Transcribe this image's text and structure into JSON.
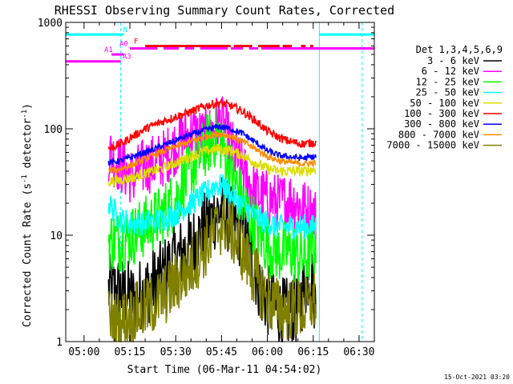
{
  "chart_data": {
    "type": "line",
    "title": "RHESSI Observing Summary Count Rates, Corrected",
    "xlabel": "Start Time (06-Mar-11 04:54:02)",
    "ylabel_main": "Corrected Count Rate (s",
    "ylabel_sup1": "-1",
    "ylabel_mid": " detector",
    "ylabel_sup2": "-1",
    "ylabel_end": ")",
    "yscale": "log",
    "ylim": [
      1,
      1000
    ],
    "xlim_min": [
      -6,
      95
    ],
    "x_ticks": [
      {
        "m": 0,
        "label": "05:00"
      },
      {
        "m": 15,
        "label": "05:15"
      },
      {
        "m": 30,
        "label": "05:30"
      },
      {
        "m": 45,
        "label": "05:45"
      },
      {
        "m": 60,
        "label": "06:00"
      },
      {
        "m": 75,
        "label": "06:15"
      },
      {
        "m": 90,
        "label": "06:30"
      }
    ],
    "y_ticks": [
      {
        "v": 1,
        "label": "1"
      },
      {
        "v": 10,
        "label": "10"
      },
      {
        "v": 100,
        "label": "100"
      },
      {
        "v": 1000,
        "label": "1000"
      }
    ],
    "legend_title": "Det 1,3,4,5,6,9",
    "series": [
      {
        "name": "3 - 6 keV",
        "color": "#000000",
        "noise": 0.35,
        "x": [
          8,
          12,
          16,
          20,
          25,
          30,
          35,
          40,
          43,
          45,
          48,
          52,
          55,
          58,
          62,
          66,
          70,
          74,
          76
        ],
        "y": [
          3,
          3,
          2.5,
          3,
          4,
          6,
          8,
          12,
          16,
          17,
          14,
          10,
          6,
          3,
          2,
          1.8,
          2,
          5,
          2
        ]
      },
      {
        "name": "6 - 12 keV",
        "color": "#ff00ff",
        "noise": 0.28,
        "x": [
          8,
          12,
          16,
          20,
          25,
          28,
          32,
          36,
          40,
          44,
          46,
          48,
          52,
          56,
          60,
          64,
          68,
          72,
          76
        ],
        "y": [
          60,
          45,
          35,
          45,
          50,
          60,
          80,
          90,
          80,
          120,
          100,
          70,
          40,
          25,
          22,
          20,
          22,
          18,
          15
        ]
      },
      {
        "name": "12 - 25 keV",
        "color": "#00ff00",
        "noise": 0.3,
        "x": [
          8,
          12,
          16,
          20,
          25,
          30,
          35,
          40,
          44,
          46,
          48,
          52,
          56,
          60,
          64,
          68,
          72,
          76
        ],
        "y": [
          9,
          9,
          10,
          12,
          15,
          22,
          40,
          70,
          90,
          60,
          40,
          20,
          12,
          8,
          7,
          7,
          6,
          8
        ]
      },
      {
        "name": "25 - 50 keV",
        "color": "#00ffff",
        "noise": 0.12,
        "x": [
          8,
          12,
          16,
          20,
          25,
          30,
          35,
          40,
          43,
          46,
          48,
          52,
          56,
          60,
          64,
          68,
          72,
          76
        ],
        "y": [
          20,
          14,
          13,
          13,
          14,
          16,
          20,
          25,
          30,
          28,
          24,
          19,
          15,
          13,
          12,
          12,
          12,
          12
        ]
      },
      {
        "name": "50 - 100 keV",
        "color": "#dddd00",
        "noise": 0.05,
        "x": [
          8,
          12,
          16,
          20,
          25,
          30,
          35,
          40,
          44,
          48,
          52,
          56,
          60,
          64,
          68,
          72,
          76
        ],
        "y": [
          32,
          33,
          35,
          38,
          42,
          48,
          55,
          62,
          65,
          62,
          56,
          48,
          42,
          40,
          40,
          40,
          42
        ]
      },
      {
        "name": "100 - 300 keV",
        "color": "#ff0000",
        "noise": 0.04,
        "x": [
          8,
          12,
          16,
          20,
          25,
          30,
          35,
          40,
          44,
          48,
          52,
          56,
          60,
          64,
          68,
          72,
          76
        ],
        "y": [
          65,
          72,
          85,
          100,
          115,
          130,
          145,
          165,
          175,
          165,
          145,
          120,
          95,
          82,
          75,
          72,
          75
        ]
      },
      {
        "name": "300 - 800 keV",
        "color": "#0000ff",
        "noise": 0.03,
        "x": [
          8,
          12,
          16,
          20,
          25,
          30,
          35,
          40,
          44,
          48,
          52,
          56,
          60,
          64,
          68,
          72,
          76
        ],
        "y": [
          48,
          50,
          55,
          60,
          68,
          78,
          88,
          98,
          105,
          100,
          90,
          75,
          62,
          56,
          54,
          53,
          55
        ]
      },
      {
        "name": "800 - 7000 keV",
        "color": "#ff8c00",
        "noise": 0.03,
        "x": [
          8,
          12,
          16,
          20,
          25,
          30,
          35,
          40,
          44,
          48,
          52,
          56,
          60,
          64,
          68,
          72,
          76
        ],
        "y": [
          40,
          42,
          46,
          52,
          60,
          68,
          76,
          85,
          90,
          85,
          76,
          65,
          55,
          50,
          48,
          47,
          48
        ]
      },
      {
        "name": "7000 - 15000 keV",
        "color": "#808000",
        "noise": 0.3,
        "x": [
          8,
          12,
          16,
          20,
          25,
          30,
          35,
          40,
          44,
          46,
          48,
          52,
          56,
          60,
          64,
          68,
          72,
          76
        ],
        "y": [
          1.6,
          1.5,
          1.8,
          2,
          2.5,
          3.5,
          5,
          8,
          12,
          13,
          11,
          7,
          4,
          2.5,
          2,
          2,
          2,
          2.5
        ]
      }
    ],
    "state_bars": [
      {
        "label": "N",
        "color": "#00ffff",
        "y_level": 770,
        "label_at": 13.5,
        "segments": [
          [
            -6,
            13
          ],
          [
            77,
            95
          ]
        ]
      },
      {
        "label": "F",
        "color": "#ff0000",
        "y_level": 600,
        "label_at": 17,
        "segments": [
          [
            20,
            48
          ],
          [
            49,
            55
          ],
          [
            57,
            64
          ],
          [
            65,
            68
          ],
          [
            71,
            72.5
          ],
          [
            74,
            75
          ]
        ]
      },
      {
        "label": "A0",
        "color": "#ff00ff",
        "y_level": 570,
        "label_at": 13,
        "segments": [
          [
            15,
            24
          ],
          [
            26,
            31
          ],
          [
            33,
            36
          ],
          [
            38,
            47
          ],
          [
            48,
            52
          ],
          [
            54,
            57
          ],
          [
            58,
            95
          ]
        ]
      },
      {
        "label": "A1",
        "color": "#ff00ff",
        "y_level": 500,
        "label_at": 8,
        "segments": [
          [
            9,
            13
          ]
        ]
      },
      {
        "label": "A3",
        "color": "#ff00ff",
        "y_level": 430,
        "label_at": 14,
        "segments": [
          [
            -6,
            12
          ]
        ]
      }
    ],
    "vlines": [
      {
        "m": -6,
        "color": "#00ffff",
        "dash": false
      },
      {
        "m": 12,
        "color": "#00ffff",
        "dash": true
      },
      {
        "m": 77,
        "color": "#00ffff",
        "dash": false
      },
      {
        "m": 91,
        "color": "#00ffff",
        "dash": true
      }
    ],
    "footer_date": "15-Oct-2021 03:20"
  }
}
